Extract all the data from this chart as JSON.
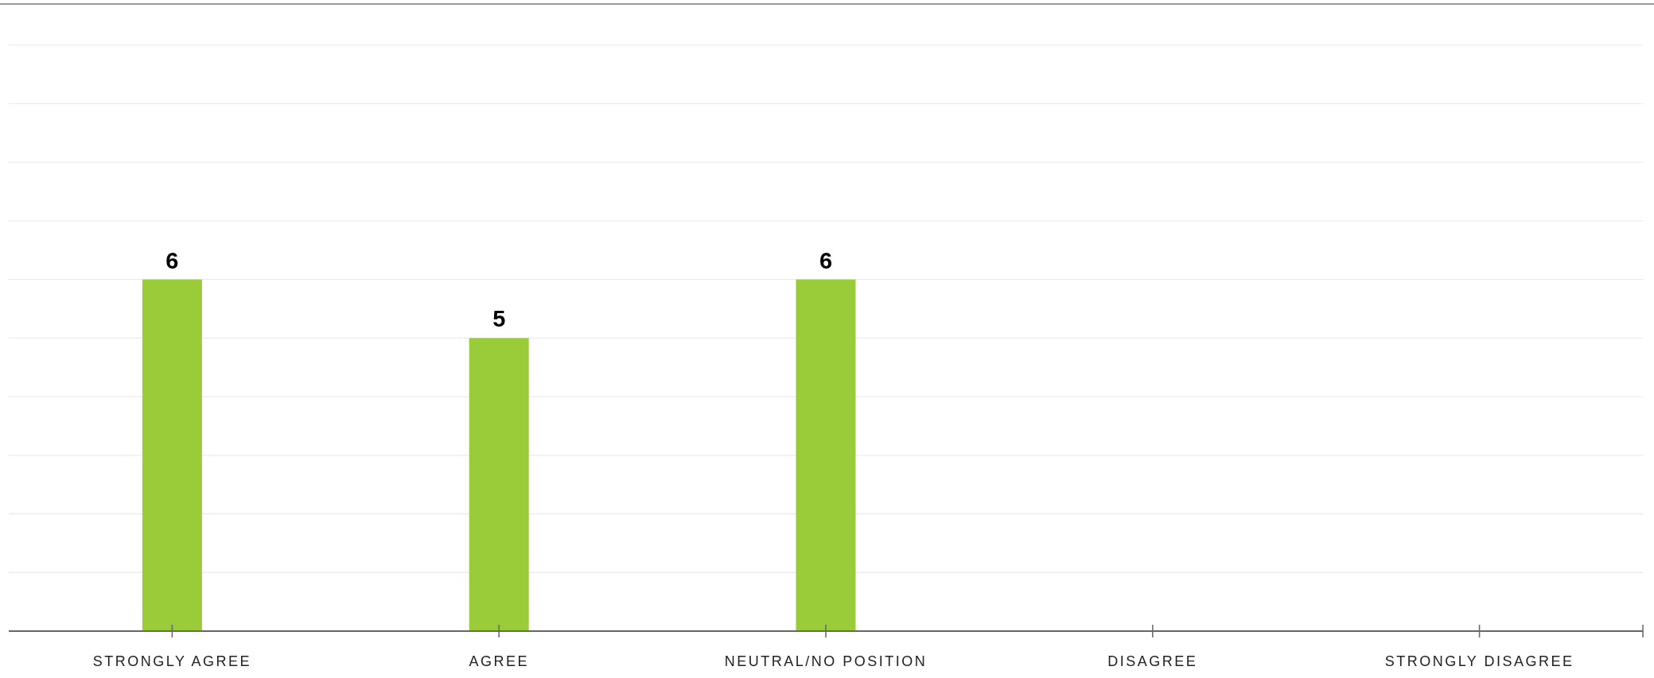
{
  "chart_data": {
    "type": "bar",
    "categories": [
      "STRONGLY AGREE",
      "AGREE",
      "NEUTRAL/NO POSITION",
      "DISAGREE",
      "STRONGLY DISAGREE"
    ],
    "values": [
      6,
      5,
      6,
      0,
      0
    ],
    "value_labels": [
      "6",
      "5",
      "6",
      null,
      null
    ],
    "color": "#9acb38",
    "ylim": [
      0,
      10.7
    ],
    "yticks": [
      {
        "value": 0,
        "label": null
      },
      {
        "value": 1,
        "label": null
      },
      {
        "value": 2,
        "label": null
      },
      {
        "value": 3,
        "label": null
      },
      {
        "value": 4,
        "label": null
      },
      {
        "value": 5,
        "label": null
      },
      {
        "value": 6,
        "label": null
      },
      {
        "value": 7,
        "label": null
      },
      {
        "value": 8,
        "label": null
      },
      {
        "value": 9,
        "label": null
      },
      {
        "value": 10,
        "label": null
      }
    ],
    "grid": "y",
    "tick_labels": "x"
  }
}
